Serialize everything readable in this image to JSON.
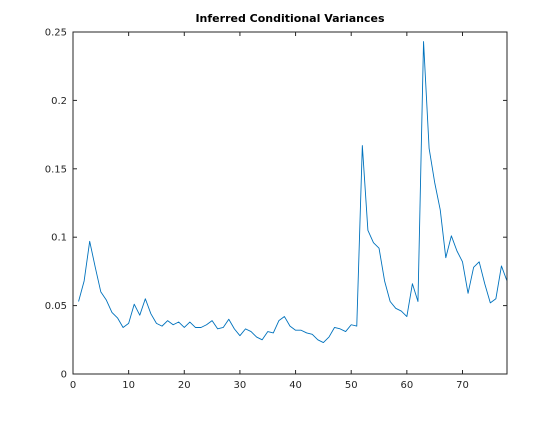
{
  "chart_data": {
    "type": "line",
    "title": "Inferred Conditional Variances",
    "xlabel": "",
    "ylabel": "",
    "xlim": [
      0,
      78
    ],
    "ylim": [
      0,
      0.25
    ],
    "xticks": [
      0,
      10,
      20,
      30,
      40,
      50,
      60,
      70
    ],
    "yticks": [
      0,
      0.05,
      0.1,
      0.15,
      0.2,
      0.25
    ],
    "xtick_labels": [
      "0",
      "10",
      "20",
      "30",
      "40",
      "50",
      "60",
      "70"
    ],
    "ytick_labels": [
      "0",
      "0.05",
      "0.1",
      "0.15",
      "0.2",
      "0.25"
    ],
    "grid": false,
    "line_color": "#0072BD",
    "series": [
      {
        "x": [
          1,
          2,
          3,
          4,
          5,
          6,
          7,
          8,
          9,
          10,
          11,
          12,
          13,
          14,
          15,
          16,
          17,
          18,
          19,
          20,
          21,
          22,
          23,
          24,
          25,
          26,
          27,
          28,
          29,
          30,
          31,
          32,
          33,
          34,
          35,
          36,
          37,
          38,
          39,
          40,
          41,
          42,
          43,
          44,
          45,
          46,
          47,
          48,
          49,
          50,
          51,
          52,
          53,
          54,
          55,
          56,
          57,
          58,
          59,
          60,
          61,
          62,
          63,
          64,
          65,
          66,
          67,
          68,
          69,
          70,
          71,
          72,
          73,
          74,
          75,
          76,
          77,
          78
        ],
        "values": [
          0.053,
          0.068,
          0.097,
          0.078,
          0.06,
          0.054,
          0.045,
          0.041,
          0.034,
          0.037,
          0.051,
          0.043,
          0.055,
          0.044,
          0.037,
          0.035,
          0.039,
          0.036,
          0.038,
          0.034,
          0.038,
          0.034,
          0.034,
          0.036,
          0.039,
          0.033,
          0.034,
          0.04,
          0.033,
          0.028,
          0.033,
          0.031,
          0.027,
          0.025,
          0.031,
          0.03,
          0.039,
          0.042,
          0.035,
          0.032,
          0.032,
          0.03,
          0.029,
          0.025,
          0.023,
          0.027,
          0.034,
          0.033,
          0.031,
          0.036,
          0.035,
          0.167,
          0.105,
          0.096,
          0.092,
          0.068,
          0.053,
          0.048,
          0.046,
          0.042,
          0.066,
          0.053,
          0.243,
          0.165,
          0.14,
          0.12,
          0.085,
          0.101,
          0.09,
          0.082,
          0.059,
          0.078,
          0.082,
          0.066,
          0.052,
          0.055,
          0.079,
          0.068
        ]
      }
    ]
  }
}
